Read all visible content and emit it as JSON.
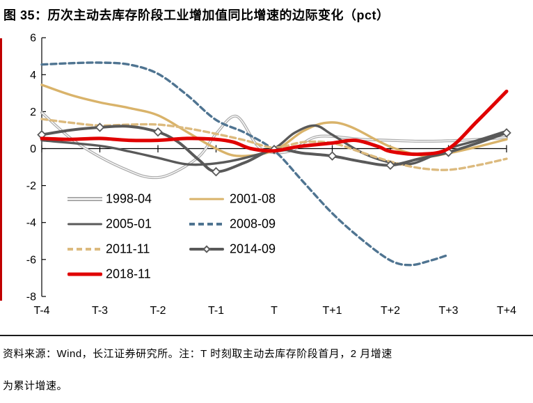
{
  "page": {
    "title": "图 35：历次主动去库存阶段工业增加值同比增速的边际变化（pct）"
  },
  "footer": {
    "line1": "资料来源：Wind，长江证券研究所。注：T 时刻取主动去库存阶段首月，2 月增速",
    "line2": "为累计增速。"
  },
  "colors": {
    "accent_bar": "#c00000",
    "axis": "#000000",
    "gray_light": "#ababab",
    "gray_dark": "#595959",
    "tan": "#d9b36a",
    "tan_dashed": "#dcba7e",
    "blue": "#4f7491",
    "red": "#e00000"
  },
  "chart_data": {
    "type": "line",
    "title": "历次主动去库存阶段工业增加值同比增速的边际变化（pct）",
    "xlabel": "",
    "ylabel": "",
    "x_tick_labels": [
      "T-4",
      "T-3",
      "T-2",
      "T-1",
      "T",
      "T+1",
      "T+2",
      "T+3",
      "T+4"
    ],
    "y_ticks": [
      6,
      4,
      2,
      0,
      -2,
      -4,
      -6,
      -8
    ],
    "ylim": [
      -8,
      6
    ],
    "grid": false,
    "legend_position": "inside-left",
    "note": "x values are tick offsets: 0 = T-4 ... 8 = T+4; all series pass through ~0 at T (x=4)",
    "series": [
      {
        "name": "1998-04",
        "color": "#ababab",
        "style": "double",
        "width": 4,
        "points": [
          [
            0,
            1.95
          ],
          [
            0.5,
            0.55
          ],
          [
            1,
            -0.45
          ],
          [
            1.5,
            -1.2
          ],
          [
            1.85,
            -1.55
          ],
          [
            2.2,
            -1.4
          ],
          [
            2.7,
            -0.45
          ],
          [
            3,
            0.8
          ],
          [
            3.35,
            1.75
          ],
          [
            3.7,
            0.2
          ],
          [
            3.95,
            -0.2
          ],
          [
            4.3,
            -0.1
          ],
          [
            4.75,
            0.65
          ],
          [
            5.5,
            0.5
          ],
          [
            6,
            0.45
          ],
          [
            6.5,
            0.4
          ],
          [
            7,
            0.42
          ],
          [
            7.5,
            0.5
          ],
          [
            8,
            0.6
          ]
        ]
      },
      {
        "name": "2001-08",
        "color": "#d9b36a",
        "style": "solid",
        "width": 3.4,
        "points": [
          [
            0,
            3.45
          ],
          [
            0.5,
            2.9
          ],
          [
            1,
            2.5
          ],
          [
            1.5,
            2.2
          ],
          [
            2,
            1.8
          ],
          [
            2.5,
            0.9
          ],
          [
            3,
            0.0
          ],
          [
            3.4,
            -0.4
          ],
          [
            4,
            -0.1
          ],
          [
            4.5,
            0.95
          ],
          [
            4.9,
            1.4
          ],
          [
            5.3,
            1.2
          ],
          [
            6,
            0.1
          ],
          [
            6.6,
            -0.4
          ],
          [
            7,
            -0.25
          ],
          [
            7.5,
            0.1
          ],
          [
            8,
            0.5
          ]
        ]
      },
      {
        "name": "2005-01",
        "color": "#595959",
        "style": "solid",
        "width": 3.4,
        "points": [
          [
            0,
            0.45
          ],
          [
            1,
            0.15
          ],
          [
            1.5,
            -0.15
          ],
          [
            2,
            -0.5
          ],
          [
            2.5,
            -0.85
          ],
          [
            3,
            -0.8
          ],
          [
            3.5,
            -0.5
          ],
          [
            4,
            0.0
          ],
          [
            4.35,
            0.85
          ],
          [
            4.7,
            1.25
          ],
          [
            5,
            0.75
          ],
          [
            5.5,
            -0.2
          ],
          [
            6,
            -0.75
          ],
          [
            6.4,
            -0.8
          ],
          [
            7,
            0.0
          ],
          [
            7.5,
            0.45
          ],
          [
            8,
            0.95
          ]
        ]
      },
      {
        "name": "2008-09",
        "color": "#4f7491",
        "style": "dashed",
        "width": 3.4,
        "points": [
          [
            0,
            4.55
          ],
          [
            0.5,
            4.62
          ],
          [
            1,
            4.65
          ],
          [
            1.5,
            4.55
          ],
          [
            2,
            4.05
          ],
          [
            2.5,
            2.9
          ],
          [
            3,
            1.55
          ],
          [
            3.5,
            0.85
          ],
          [
            4,
            -0.1
          ],
          [
            4.5,
            -1.8
          ],
          [
            5,
            -3.5
          ],
          [
            5.5,
            -4.9
          ],
          [
            6,
            -6.05
          ],
          [
            6.35,
            -6.3
          ],
          [
            6.7,
            -6.05
          ],
          [
            7,
            -5.75
          ]
        ]
      },
      {
        "name": "2011-11",
        "color": "#dcba7e",
        "style": "dashed",
        "width": 3.4,
        "points": [
          [
            0,
            1.6
          ],
          [
            0.5,
            1.4
          ],
          [
            1,
            1.25
          ],
          [
            1.5,
            1.3
          ],
          [
            2,
            1.3
          ],
          [
            2.5,
            1.1
          ],
          [
            3,
            0.8
          ],
          [
            3.5,
            0.45
          ],
          [
            4,
            0.05
          ],
          [
            4.5,
            0.35
          ],
          [
            5,
            0.3
          ],
          [
            5.5,
            -0.2
          ],
          [
            6,
            -0.7
          ],
          [
            6.5,
            -1.05
          ],
          [
            7,
            -1.15
          ],
          [
            7.5,
            -0.9
          ],
          [
            8,
            -0.55
          ]
        ]
      },
      {
        "name": "2014-09",
        "color": "#595959",
        "style": "solid",
        "width": 4,
        "marker": "diamond",
        "points": [
          [
            0,
            0.75
          ],
          [
            0.5,
            1.0
          ],
          [
            1,
            1.15
          ],
          [
            1.5,
            1.2
          ],
          [
            2,
            0.9
          ],
          [
            2.35,
            0.35
          ],
          [
            2.7,
            -0.6
          ],
          [
            3,
            -1.25
          ],
          [
            3.5,
            -0.75
          ],
          [
            4,
            -0.05
          ],
          [
            4.5,
            -0.25
          ],
          [
            5,
            -0.4
          ],
          [
            5.5,
            -0.7
          ],
          [
            6,
            -0.9
          ],
          [
            6.5,
            -0.55
          ],
          [
            7,
            -0.2
          ],
          [
            7.5,
            0.3
          ],
          [
            8,
            0.85
          ]
        ]
      },
      {
        "name": "2018-11",
        "color": "#e00000",
        "style": "solid",
        "width": 5,
        "points": [
          [
            0,
            0.55
          ],
          [
            0.5,
            0.5
          ],
          [
            1,
            0.55
          ],
          [
            1.5,
            0.45
          ],
          [
            2,
            0.45
          ],
          [
            2.5,
            0.55
          ],
          [
            3,
            0.5
          ],
          [
            3.3,
            0.35
          ],
          [
            3.6,
            0.0
          ],
          [
            4,
            -0.12
          ],
          [
            4.4,
            0.1
          ],
          [
            5,
            0.3
          ],
          [
            5.4,
            0.45
          ],
          [
            5.8,
            0.1
          ],
          [
            6,
            -0.15
          ],
          [
            6.5,
            -0.3
          ],
          [
            7,
            0.0
          ],
          [
            7.5,
            1.5
          ],
          [
            8,
            3.1
          ]
        ]
      }
    ]
  },
  "legend": {
    "items": [
      {
        "label": "1998-04"
      },
      {
        "label": "2001-08"
      },
      {
        "label": "2005-01"
      },
      {
        "label": "2008-09"
      },
      {
        "label": "2011-11"
      },
      {
        "label": "2014-09"
      },
      {
        "label": "2018-11"
      }
    ]
  }
}
